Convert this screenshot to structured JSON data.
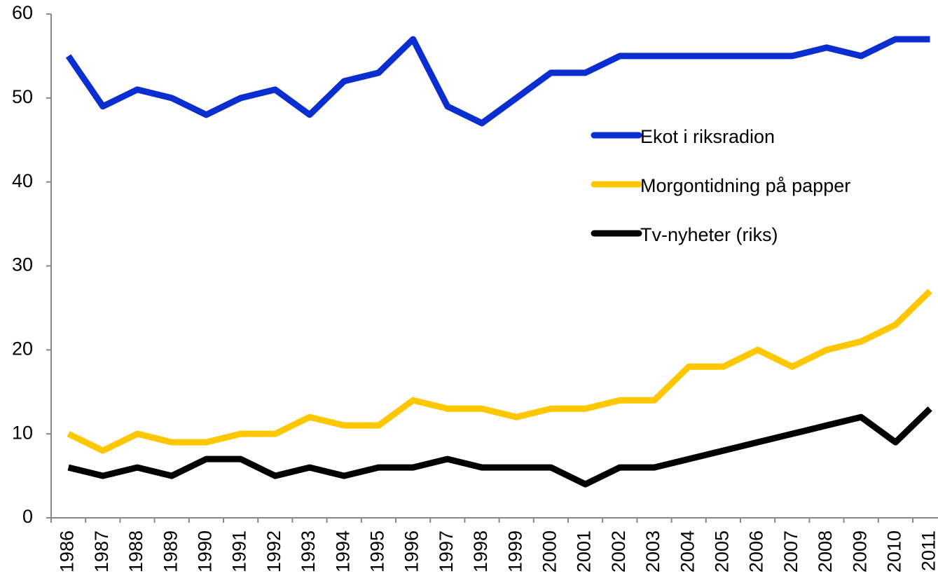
{
  "chart_data": {
    "type": "line",
    "categories": [
      "1986",
      "1987",
      "1988",
      "1989",
      "1990",
      "1991",
      "1992",
      "1993",
      "1994",
      "1995",
      "1996",
      "1997",
      "1998",
      "1999",
      "2000",
      "2001",
      "2002",
      "2003",
      "2004",
      "2005",
      "2006",
      "2007",
      "2008",
      "2009",
      "2010",
      "2011"
    ],
    "series": [
      {
        "name": "Ekot i riksradion",
        "color": "#0a2ecf",
        "values": [
          55,
          49,
          51,
          50,
          48,
          50,
          51,
          48,
          52,
          53,
          57,
          49,
          47,
          50,
          53,
          53,
          55,
          55,
          55,
          55,
          55,
          55,
          56,
          55,
          57,
          57
        ]
      },
      {
        "name": "Morgontidning på papper",
        "color": "#ffc700",
        "values": [
          10,
          8,
          10,
          9,
          9,
          10,
          10,
          12,
          11,
          11,
          14,
          13,
          13,
          12,
          13,
          13,
          14,
          14,
          18,
          18,
          20,
          18,
          20,
          21,
          23,
          27
        ]
      },
      {
        "name": "Tv-nyheter (riks)",
        "color": "#000000",
        "values": [
          6,
          5,
          6,
          5,
          7,
          7,
          5,
          6,
          5,
          6,
          6,
          7,
          6,
          6,
          6,
          4,
          6,
          6,
          7,
          8,
          9,
          10,
          11,
          12,
          9,
          13
        ]
      }
    ],
    "ylim": [
      0,
      60
    ],
    "yticks": [
      0,
      10,
      20,
      30,
      40,
      50,
      60
    ]
  }
}
